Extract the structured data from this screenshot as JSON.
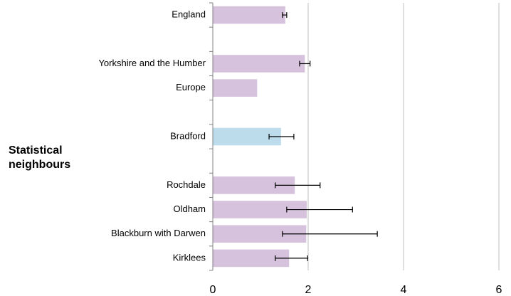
{
  "chart_data": {
    "type": "bar",
    "orientation": "horizontal",
    "categories": [
      "England",
      null,
      "Yorkshire and the Humber",
      "Europe",
      null,
      "Bradford",
      null,
      "Rochdale",
      "Oldham",
      "Blackburn with Darwen",
      "Kirklees"
    ],
    "values": [
      1.52,
      null,
      1.93,
      0.93,
      null,
      1.43,
      null,
      1.72,
      1.97,
      1.96,
      1.6
    ],
    "error_low": [
      1.46,
      null,
      1.82,
      null,
      null,
      1.18,
      null,
      1.31,
      1.55,
      1.46,
      1.31
    ],
    "error_high": [
      1.55,
      null,
      2.04,
      null,
      null,
      1.7,
      null,
      2.25,
      2.93,
      3.45,
      1.99
    ],
    "colors": [
      "#d6c2dc",
      null,
      "#d6c2dc",
      "#d6c2dc",
      null,
      "#bcdcec",
      null,
      "#d6c2dc",
      "#d6c2dc",
      "#d6c2dc",
      "#d6c2dc"
    ],
    "annotation": "Statistical neighbours",
    "xlim": [
      0,
      6
    ],
    "xticks": [
      0,
      2,
      4,
      6
    ],
    "grid": true
  }
}
